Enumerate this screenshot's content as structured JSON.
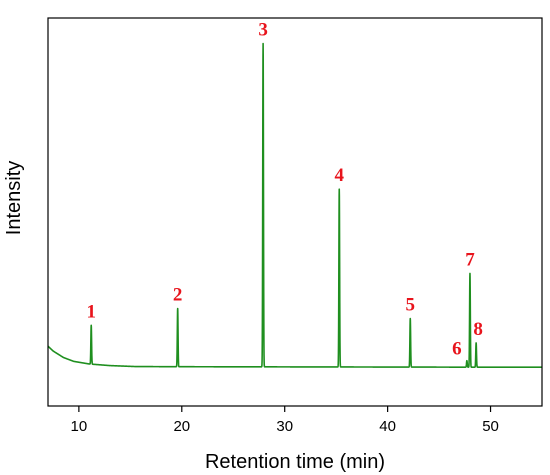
{
  "chart_data": {
    "type": "line",
    "title": "",
    "xlabel": "Retention time (min)",
    "ylabel": "Intensity",
    "xlim": [
      7,
      55
    ],
    "ylim": [
      -0.12,
      1.08
    ],
    "xticks": [
      10,
      20,
      30,
      40,
      50
    ],
    "yticks_shown": false,
    "grid": false,
    "colors": {
      "trace": "#1f8f1f",
      "peak_labels": "#e8141c",
      "axes": "#000000"
    },
    "baseline": [
      [
        7.0,
        0.065
      ],
      [
        7.5,
        0.05
      ],
      [
        8.5,
        0.03
      ],
      [
        9.5,
        0.018
      ],
      [
        11,
        0.01
      ],
      [
        13,
        0.005
      ],
      [
        15.5,
        0.002
      ],
      [
        20,
        0.0015
      ],
      [
        30,
        0.001
      ],
      [
        40,
        0.0005
      ],
      [
        50,
        0.0
      ],
      [
        55,
        0.0
      ]
    ],
    "peaks": [
      {
        "label": "1",
        "x": 11.2,
        "y": 0.12
      },
      {
        "label": "2",
        "x": 19.6,
        "y": 0.18
      },
      {
        "label": "3",
        "x": 27.9,
        "y": 1.0
      },
      {
        "label": "4",
        "x": 35.3,
        "y": 0.55
      },
      {
        "label": "5",
        "x": 42.2,
        "y": 0.15
      },
      {
        "label": "6",
        "x": 47.7,
        "y": 0.02
      },
      {
        "label": "7",
        "x": 48.0,
        "y": 0.29
      },
      {
        "label": "8",
        "x": 48.6,
        "y": 0.075
      }
    ]
  }
}
